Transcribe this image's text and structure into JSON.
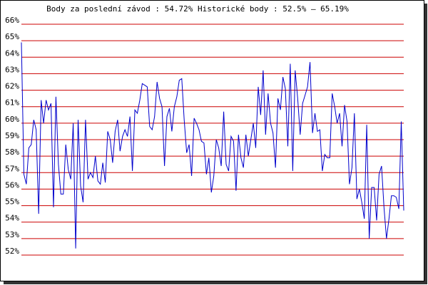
{
  "chart_data": {
    "type": "line",
    "title": "Body za poslední závod : 54.72%  Historické body : 52.5% – 65.19%",
    "values": [
      64.9,
      56.9,
      56.3,
      58.5,
      58.7,
      60.2,
      59.6,
      54.5,
      61.4,
      60,
      61.4,
      60.8,
      61.2,
      54.9,
      61.6,
      57.5,
      55.7,
      55.7,
      58.7,
      57.2,
      56.6,
      60,
      52.4,
      60.2,
      56.2,
      55.2,
      60.2,
      56.6,
      57,
      56.7,
      58,
      56.5,
      56.3,
      57.6,
      56.4,
      59.5,
      59,
      57.6,
      59.5,
      60.2,
      58.3,
      59.2,
      59.6,
      59.2,
      60.4,
      57.1,
      60.8,
      60.6,
      61.4,
      62.4,
      62.3,
      62.2,
      59.8,
      59.6,
      60.4,
      62.5,
      61.5,
      61,
      57.4,
      60.4,
      60.9,
      59.5,
      61,
      61.6,
      62.6,
      62.7,
      60.2,
      58.2,
      58.7,
      56.8,
      60.3,
      60,
      59.6,
      58.9,
      58.8,
      56.9,
      57.9,
      55.8,
      56.8,
      59,
      58.5,
      57.4,
      60.7,
      57.5,
      57.1,
      59.2,
      58.9,
      55.9,
      59.3,
      57.9,
      57.3,
      59.3,
      58,
      59,
      60,
      58.5,
      62.2,
      60.5,
      63.2,
      59.3,
      61.8,
      60,
      59.4,
      57.3,
      61.5,
      60.8,
      62.8,
      62.1,
      58.6,
      63.6,
      57.1,
      63.2,
      61.5,
      59.3,
      61.2,
      61.7,
      62.2,
      63.7,
      59.4,
      60.6,
      59.5,
      59.6,
      57.1,
      58.1,
      57.9,
      57.9,
      61.8,
      61,
      60,
      60.6,
      58.6,
      61.1,
      60.1,
      56.3,
      57.3,
      60.6,
      55.4,
      56,
      55.2,
      54.2,
      59.9,
      53,
      56.1,
      56.1,
      54.1,
      56.9,
      57.4,
      54.9,
      53,
      54.2,
      55.6,
      55.6,
      55.5,
      54.8,
      60.1,
      54.7
    ],
    "color": "#0000cc",
    "grid_color": "#cc0000",
    "ylim": [
      52,
      66
    ],
    "yticks": [
      {
        "value": 52,
        "label": "52%"
      },
      {
        "value": 53,
        "label": "53%"
      },
      {
        "value": 54,
        "label": "54%"
      },
      {
        "value": 55,
        "label": "55%"
      },
      {
        "value": 56,
        "label": "56%"
      },
      {
        "value": 57,
        "label": "57%"
      },
      {
        "value": 58,
        "label": "58%"
      },
      {
        "value": 59,
        "label": "59%"
      },
      {
        "value": 60,
        "label": "60%"
      },
      {
        "value": 61,
        "label": "61%"
      },
      {
        "value": 62,
        "label": "62%"
      },
      {
        "value": 63,
        "label": "63%"
      },
      {
        "value": 64,
        "label": "64%"
      },
      {
        "value": 65,
        "label": "65%"
      },
      {
        "value": 66,
        "label": "66%"
      }
    ],
    "grid": true
  }
}
